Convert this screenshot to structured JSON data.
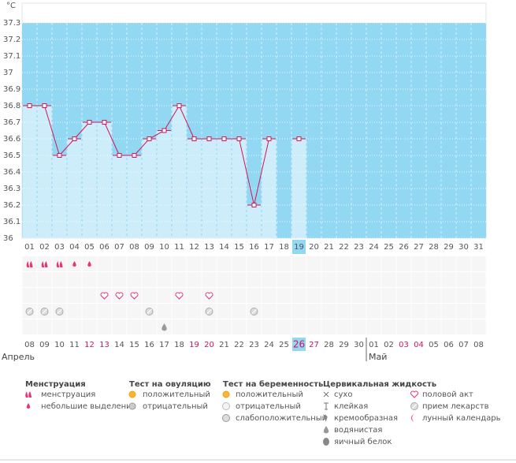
{
  "chart_data": {
    "type": "line",
    "y_label": "°C",
    "categories": [
      "01",
      "02",
      "03",
      "04",
      "05",
      "06",
      "07",
      "08",
      "09",
      "10",
      "11",
      "12",
      "13",
      "14",
      "15",
      "16",
      "17",
      "18",
      "19",
      "20",
      "21",
      "22",
      "23",
      "24",
      "25",
      "26",
      "27",
      "28",
      "29",
      "30",
      "31"
    ],
    "values": [
      36.8,
      36.8,
      36.5,
      36.6,
      36.7,
      36.7,
      36.5,
      36.5,
      36.6,
      36.65,
      36.8,
      36.6,
      36.6,
      36.6,
      36.6,
      36.2,
      36.6,
      null,
      36.6,
      null,
      null,
      null,
      null,
      null,
      null,
      null,
      null,
      null,
      null,
      null,
      null
    ],
    "color": "#d4145a",
    "bar_color": "#cdedfb",
    "background": "#93d8f3",
    "ylim": [
      36,
      37.4
    ],
    "yticks": [
      36,
      36.1,
      36.2,
      36.3,
      36.4,
      36.5,
      36.6,
      36.7,
      36.8,
      36.9,
      37,
      37.1,
      37.2,
      37.3
    ],
    "grid": true,
    "today": 18,
    "dates": [
      "08",
      "09",
      "10",
      "11",
      "12",
      "13",
      "14",
      "15",
      "16",
      "17",
      "18",
      "19",
      "20",
      "21",
      "22",
      "23",
      "24",
      "25",
      "26",
      "27",
      "28",
      "29",
      "30",
      "01",
      "02",
      "03",
      "04",
      "05",
      "06",
      "07",
      "08"
    ],
    "weekends": [
      4,
      5,
      11,
      12,
      18,
      19,
      25,
      26
    ],
    "weekend_color": "#d4145a",
    "months": [
      {
        "name": "Апрель",
        "start": 0
      },
      {
        "name": "Май",
        "start": 23
      }
    ],
    "event_legend": [
      {
        "title": "Менструация",
        "items": [
          {
            "label": "менструация",
            "days": [
              1,
              2,
              3
            ]
          },
          {
            "label": "небольшие выделения",
            "days": [
              4,
              5
            ]
          }
        ]
      },
      {
        "title": "Тест на овуляцию",
        "items": [
          {
            "label": "положительный"
          },
          {
            "label": "отрицательный"
          }
        ]
      },
      {
        "title": "Тест на беременность",
        "items": [
          {
            "label": "положительный"
          },
          {
            "label": "отрицательный"
          },
          {
            "label": "слабоположительный"
          }
        ]
      },
      {
        "title": "Цервикальная жидкость",
        "items": [
          {
            "label": "сухо"
          },
          {
            "label": "клейкая"
          },
          {
            "label": "кремообразная"
          },
          {
            "label": "водянистая",
            "days": [
              10
            ]
          },
          {
            "label": "яичный белок"
          }
        ]
      },
      {
        "items": [
          {
            "label": "половой акт",
            "days": [
              6,
              7,
              8,
              11,
              13
            ]
          },
          {
            "label": "прием лекарств",
            "days": [
              1,
              2,
              3,
              9,
              13,
              16
            ]
          },
          {
            "label": "лунный календарь"
          }
        ]
      }
    ]
  }
}
